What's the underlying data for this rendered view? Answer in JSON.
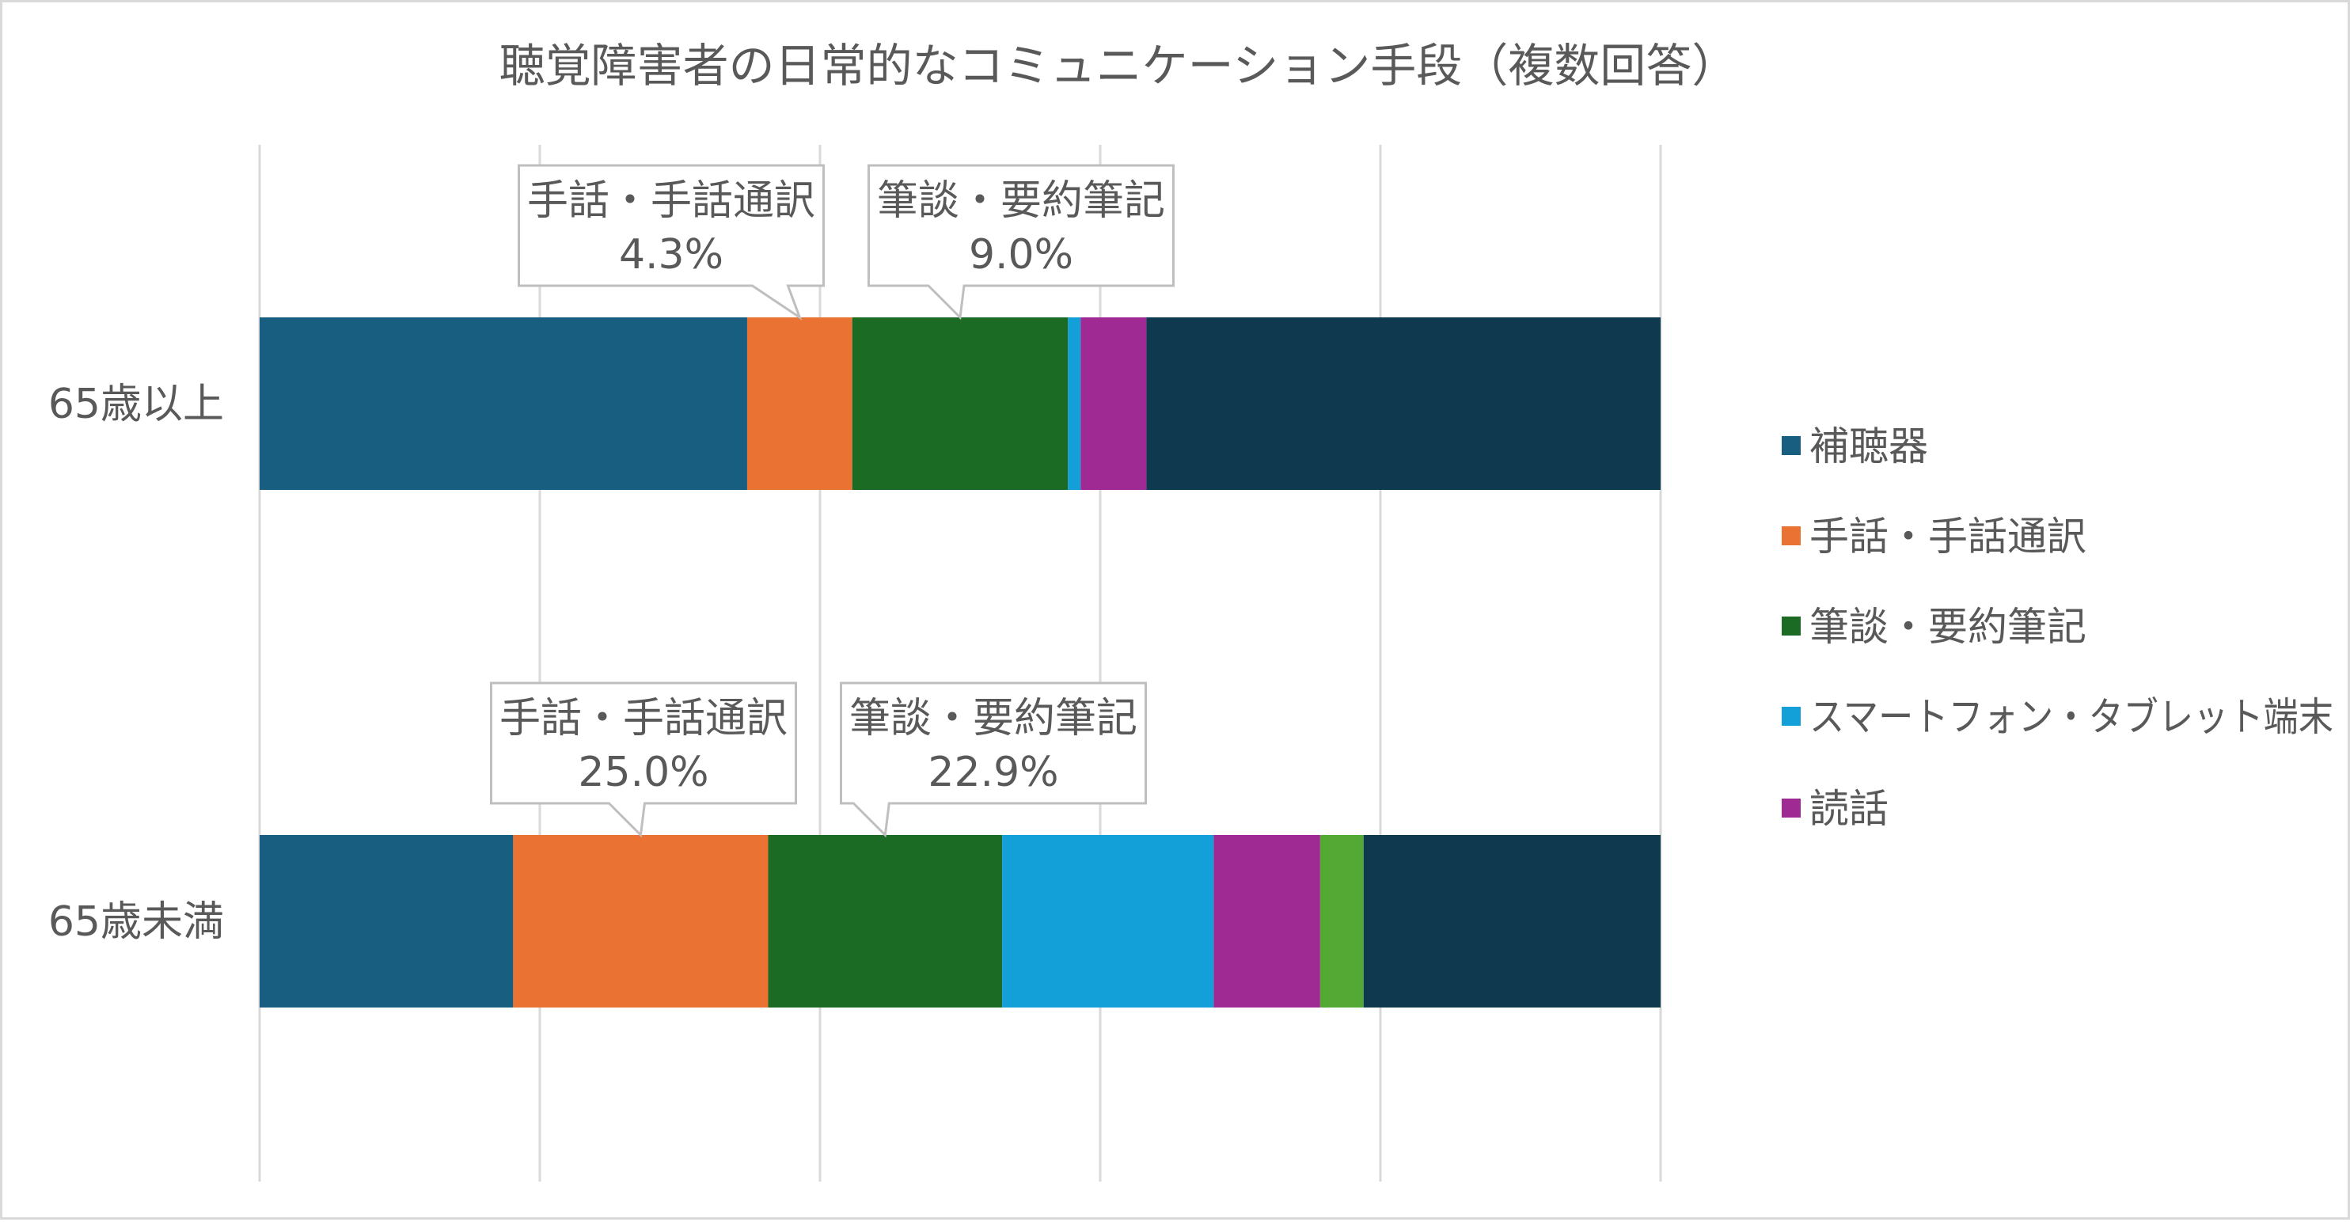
{
  "chart_data": {
    "type": "bar",
    "orientation": "horizontal",
    "stacked": true,
    "percent_stacked": true,
    "title": "聴覚障害者の日常的なコミュニケーション手段（複数回答）",
    "categories": [
      "65歳以上",
      "65歳未満"
    ],
    "series": [
      {
        "name": "補聴器",
        "color": "#175e80",
        "values": [
          34.8,
          18.1
        ]
      },
      {
        "name": "手話・手話通訳",
        "color": "#ea7333",
        "values": [
          7.5,
          18.2
        ]
      },
      {
        "name": "筆談・要約筆記",
        "color": "#1c6b25",
        "values": [
          15.4,
          16.7
        ]
      },
      {
        "name": "スマートフォン・タブレット端末",
        "color": "#139fd7",
        "values": [
          0.9,
          15.1
        ]
      },
      {
        "name": "読話",
        "color": "#a02a93",
        "values": [
          4.7,
          7.6
        ]
      },
      {
        "name": "",
        "color": "#53a933",
        "values": [
          0.0,
          3.1
        ]
      },
      {
        "name": "",
        "color": "#0e394f",
        "values": [
          36.7,
          21.2
        ]
      }
    ],
    "data_labels": [
      {
        "category": "65歳以上",
        "series": "手話・手話通訳",
        "text": "手話・手話通訳",
        "value": "4.3%"
      },
      {
        "category": "65歳以上",
        "series": "筆談・要約筆記",
        "text": "筆談・要約筆記",
        "value": "9.0%"
      },
      {
        "category": "65歳未満",
        "series": "手話・手話通訳",
        "text": "手話・手話通訳",
        "value": "25.0%"
      },
      {
        "category": "65歳未満",
        "series": "筆談・要約筆記",
        "text": "筆談・要約筆記",
        "value": "22.9%"
      }
    ],
    "xlim": [
      0,
      100
    ],
    "grid": true,
    "legend_position": "right"
  }
}
